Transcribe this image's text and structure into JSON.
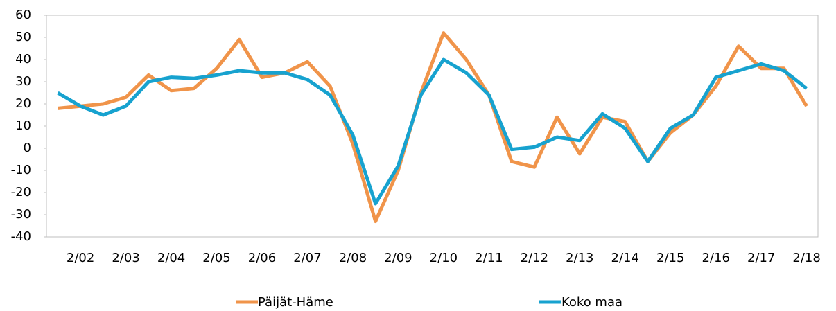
{
  "chart_data": {
    "type": "line",
    "categories": [
      null,
      "2/02",
      null,
      "2/03",
      null,
      "2/04",
      null,
      "2/05",
      null,
      "2/06",
      null,
      "2/07",
      null,
      "2/08",
      null,
      "2/09",
      null,
      "2/10",
      null,
      "2/11",
      null,
      "2/12",
      null,
      "2/13",
      null,
      "2/14",
      null,
      "2/15",
      null,
      "2/16",
      null,
      "2/17",
      null,
      "2/18"
    ],
    "series": [
      {
        "name": "Päijät-Häme",
        "color": "#f0944a",
        "values": [
          18,
          19,
          20,
          23,
          33,
          26,
          27,
          36,
          49,
          32,
          34,
          39,
          28,
          2,
          -33,
          -10,
          25,
          52,
          40,
          24,
          -6,
          -8.5,
          14,
          -2.5,
          14,
          12,
          -6,
          7,
          15,
          28,
          46,
          36,
          36,
          19
        ]
      },
      {
        "name": "Koko maa",
        "color": "#17a2cf",
        "values": [
          25,
          19,
          15,
          19,
          30,
          32,
          31.5,
          33,
          35,
          34,
          34,
          31,
          24,
          6,
          -25,
          -8,
          24,
          40,
          34,
          24,
          -0.5,
          0.5,
          5,
          3.5,
          15.5,
          9,
          -6,
          9,
          15,
          32,
          35,
          38,
          35,
          27
        ]
      }
    ],
    "ylim": [
      -40,
      60
    ],
    "yticks": [
      -40,
      -30,
      -20,
      -10,
      0,
      10,
      20,
      30,
      40,
      50,
      60
    ],
    "grid": false,
    "legend": "bottom"
  }
}
